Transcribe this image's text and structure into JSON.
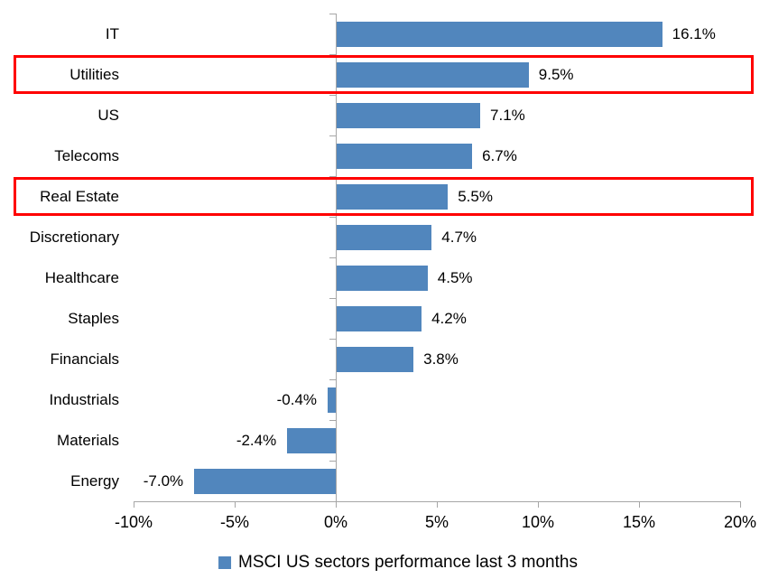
{
  "chart_data": {
    "type": "bar",
    "orientation": "horizontal",
    "title": "",
    "xlabel": "",
    "ylabel": "",
    "categories": [
      "IT",
      "Utilities",
      "US",
      "Telecoms",
      "Real Estate",
      "Discretionary",
      "Healthcare",
      "Staples",
      "Financials",
      "Industrials",
      "Materials",
      "Energy"
    ],
    "values": [
      16.1,
      9.5,
      7.1,
      6.7,
      5.5,
      4.7,
      4.5,
      4.2,
      3.8,
      -0.4,
      -2.4,
      -7.0
    ],
    "data_labels": [
      "16.1%",
      "9.5%",
      "7.1%",
      "6.7%",
      "5.5%",
      "4.7%",
      "4.5%",
      "4.2%",
      "3.8%",
      "-0.4%",
      "-2.4%",
      "-7.0%"
    ],
    "highlighted_categories": [
      "Utilities",
      "Real Estate"
    ],
    "x_ticks": [
      "-10%",
      "-5%",
      "0%",
      "5%",
      "10%",
      "15%",
      "20%"
    ],
    "x_tick_values": [
      -10,
      -5,
      0,
      5,
      10,
      15,
      20
    ],
    "xlim": [
      -10,
      20
    ],
    "grid": false,
    "legend": "MSCI US sectors performance last 3 months",
    "legend_position": "bottom",
    "bar_color": "#5186BD",
    "highlight_color": "#FF0000",
    "axis_color": "#A6A6A6",
    "text_color": "#000000"
  }
}
